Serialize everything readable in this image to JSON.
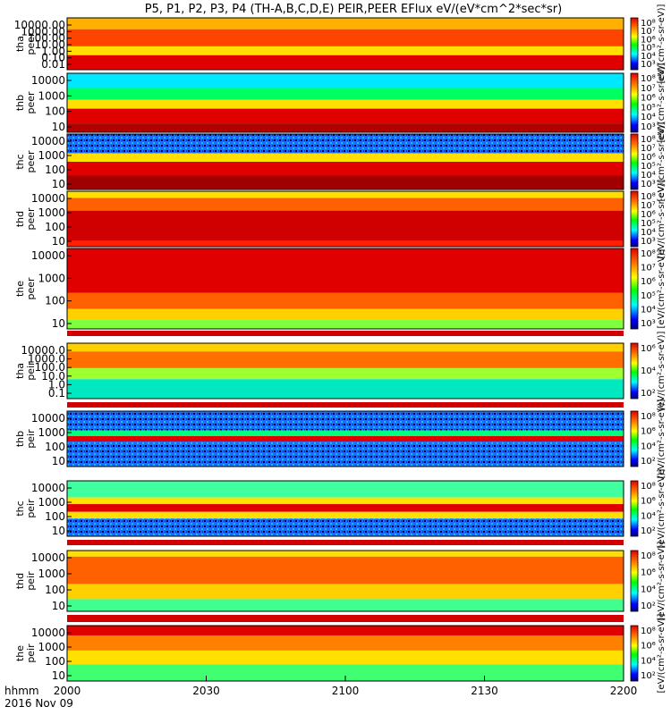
{
  "title": "P5, P1, P2, P3, P4 (TH-A,B,C,D,E) PEIR,PEER EFlux eV/(eV*cm^2*sec*sr)",
  "footer": {
    "time_label": "hhmm",
    "date_label": "2016 Nov 09"
  },
  "colors": {
    "background": "#ffffff",
    "frame": "#000000",
    "gap_red": "#d20000"
  },
  "chart_data": {
    "type": "heatmap",
    "x": {
      "ticks": [
        "2000",
        "2030",
        "2100",
        "2130",
        "2200"
      ],
      "range_minutes": [
        0,
        120
      ],
      "xlabel": "hhmm"
    },
    "colorbar": {
      "scale": "log",
      "unit_label": "[eV/(cm²-s-sr-eV)]"
    },
    "panels": [
      {
        "id": "tha-peer",
        "ylabel_top": "tha",
        "ylabel_bottom": "peer",
        "y_ticks": [
          "10000.00",
          "1000.00",
          "100.00",
          "10.00",
          "1.00",
          "0.10",
          "0.01"
        ],
        "colorbar_ticks": [
          "10⁸",
          "10⁷",
          "10⁶",
          "10⁵",
          "10⁴",
          "10³"
        ]
      },
      {
        "id": "thb-peer",
        "ylabel_top": "thb",
        "ylabel_bottom": "peer",
        "y_ticks": [
          "10000",
          "1000",
          "100",
          "10"
        ],
        "colorbar_ticks": [
          "10⁸",
          "10⁷",
          "10⁶",
          "10⁵",
          "10⁴",
          "10³"
        ]
      },
      {
        "id": "thc-peer",
        "ylabel_top": "thc",
        "ylabel_bottom": "peer",
        "y_ticks": [
          "10000",
          "1000",
          "100",
          "10"
        ],
        "colorbar_ticks": [
          "10⁸",
          "10⁷",
          "10⁶",
          "10⁵",
          "10⁴",
          "10³"
        ]
      },
      {
        "id": "thd-peer",
        "ylabel_top": "thd",
        "ylabel_bottom": "peer",
        "y_ticks": [
          "10000",
          "1000",
          "100",
          "10"
        ],
        "colorbar_ticks": [
          "10⁸",
          "10⁷",
          "10⁶",
          "10⁵",
          "10⁴",
          "10³"
        ]
      },
      {
        "id": "the-peer",
        "ylabel_top": "the",
        "ylabel_bottom": "peer",
        "y_ticks": [
          "10000",
          "1000",
          "100",
          "10"
        ],
        "colorbar_ticks": [
          "10⁸",
          "10⁷",
          "10⁶",
          "10⁵",
          "10⁴",
          "10³"
        ]
      },
      {
        "id": "tha-peir",
        "ylabel_top": "tha",
        "ylabel_bottom": "peir",
        "y_ticks": [
          "10000.0",
          "1000.0",
          "100.0",
          "10.0",
          "1.0",
          "0.1"
        ],
        "colorbar_ticks": [
          "10⁶",
          "10⁴",
          "10²"
        ]
      },
      {
        "id": "thb-peir",
        "ylabel_top": "thb",
        "ylabel_bottom": "peir",
        "y_ticks": [
          "10000",
          "1000",
          "100",
          "10"
        ],
        "colorbar_ticks": [
          "10⁸",
          "10⁶",
          "10⁴",
          "10²"
        ]
      },
      {
        "id": "thc-peir",
        "ylabel_top": "thc",
        "ylabel_bottom": "peir",
        "y_ticks": [
          "10000",
          "1000",
          "100",
          "10"
        ],
        "colorbar_ticks": [
          "10⁸",
          "10⁶",
          "10⁴",
          "10²"
        ]
      },
      {
        "id": "thd-peir",
        "ylabel_top": "thd",
        "ylabel_bottom": "peir",
        "y_ticks": [
          "10000",
          "1000",
          "100",
          "10"
        ],
        "colorbar_ticks": [
          "10⁸",
          "10⁶",
          "10⁴",
          "10²"
        ]
      },
      {
        "id": "the-peir",
        "ylabel_top": "the",
        "ylabel_bottom": "peir",
        "y_ticks": [
          "10000",
          "1000",
          "100",
          "10"
        ],
        "colorbar_ticks": [
          "10⁸",
          "10⁶",
          "10⁴",
          "10²"
        ]
      }
    ]
  }
}
